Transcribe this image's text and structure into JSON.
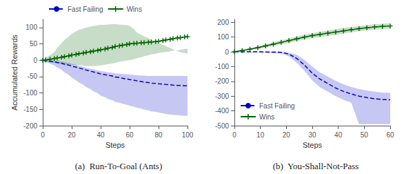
{
  "chart_data": [
    {
      "type": "line",
      "title": "(a)  Run-To-Goal (Ants)",
      "xlabel": "Steps",
      "ylabel": "Accumulated Rewards",
      "xlim": [
        0,
        100
      ],
      "ylim": [
        -200,
        125
      ],
      "xticks": [
        0,
        20,
        40,
        60,
        80,
        100
      ],
      "yticks": [
        -200,
        -150,
        -100,
        -50,
        0,
        50,
        100
      ],
      "grid": false,
      "legend": "upper left",
      "x": [
        0,
        2,
        5,
        8,
        10,
        13,
        15,
        18,
        20,
        23,
        25,
        28,
        30,
        33,
        35,
        38,
        40,
        43,
        45,
        48,
        50,
        53,
        55,
        58,
        60,
        63,
        65,
        68,
        70,
        73,
        75,
        78,
        80,
        83,
        85,
        88,
        90,
        93,
        95,
        98,
        100
      ],
      "series": [
        {
          "name": "Fast Failing",
          "color": "#0000CD",
          "line_style": "dashed",
          "values": [
            0,
            -1,
            -3,
            -5,
            -7,
            -9,
            -12,
            -15,
            -18,
            -21,
            -24,
            -27,
            -30,
            -33,
            -36,
            -39,
            -42,
            -44,
            -46,
            -48,
            -51,
            -53,
            -55,
            -57,
            -59,
            -61,
            -63,
            -65,
            -67,
            -68,
            -70,
            -71,
            -72,
            -73,
            -74,
            -75,
            -76,
            -77,
            -77,
            -78,
            -78
          ],
          "upper": [
            2,
            1,
            0,
            -1,
            -2,
            -4,
            -6,
            -8,
            -11,
            -14,
            -17,
            -20,
            -23,
            -26,
            -28,
            -31,
            -33,
            -35,
            -37,
            -38,
            -40,
            -41,
            -42,
            -43,
            -44,
            -45,
            -46,
            -47,
            -47,
            -48,
            -48,
            -48,
            -48,
            -48,
            -48,
            -48,
            -48,
            -48,
            -48,
            -48,
            -48
          ],
          "lower": [
            -2,
            -5,
            -10,
            -16,
            -22,
            -29,
            -37,
            -45,
            -53,
            -61,
            -68,
            -75,
            -82,
            -88,
            -95,
            -101,
            -108,
            -113,
            -118,
            -122,
            -127,
            -130,
            -133,
            -136,
            -139,
            -142,
            -145,
            -148,
            -151,
            -153,
            -156,
            -158,
            -160,
            -162,
            -164,
            -166,
            -167,
            -168,
            -169,
            -170,
            -170
          ]
        },
        {
          "name": "Wins",
          "color": "#006400",
          "line_style": "solid",
          "marker": "+",
          "values": [
            0,
            1,
            3,
            5,
            7,
            9,
            11,
            13,
            16,
            18,
            20,
            22,
            24,
            26,
            28,
            30,
            32,
            34,
            37,
            39,
            42,
            44,
            46,
            48,
            50,
            51,
            52,
            53,
            54,
            55,
            56,
            57,
            58,
            60,
            62,
            64,
            66,
            68,
            69,
            71,
            72
          ],
          "upper": [
            3,
            8,
            15,
            25,
            38,
            52,
            62,
            72,
            80,
            88,
            93,
            97,
            100,
            103,
            105,
            107,
            108,
            108,
            109,
            110,
            110,
            109,
            108,
            107,
            105,
            95,
            85,
            78,
            73,
            68,
            62,
            57,
            52,
            47,
            43,
            38,
            33,
            28,
            25,
            22,
            20
          ],
          "lower": [
            -3,
            -5,
            -7,
            -8,
            -10,
            -12,
            -14,
            -14,
            -14,
            -15,
            -15,
            -16,
            -18,
            -18,
            -18,
            -17,
            -16,
            -14,
            -12,
            -10,
            -8,
            -5,
            -3,
            -1,
            0,
            3,
            6,
            9,
            12,
            15,
            18,
            20,
            22,
            24,
            25,
            27,
            29,
            30,
            32,
            34,
            35
          ]
        }
      ]
    },
    {
      "type": "line",
      "title": "(b)  You-Shall-Not-Pass",
      "xlabel": "Steps",
      "xlim": [
        0,
        60
      ],
      "ylim": [
        -500,
        220
      ],
      "xticks": [
        0,
        10,
        20,
        30,
        40,
        50,
        60
      ],
      "yticks": [
        -500,
        -400,
        -300,
        -200,
        -100,
        0,
        100,
        200
      ],
      "grid": false,
      "legend": "lower left",
      "x": [
        0,
        3,
        6,
        9,
        12,
        15,
        18,
        21,
        24,
        27,
        30,
        33,
        36,
        39,
        42,
        45,
        48,
        51,
        54,
        57,
        60
      ],
      "series": [
        {
          "name": "Fast Failing",
          "color": "#0000CD",
          "line_style": "dashed",
          "values": [
            0,
            0,
            0,
            0,
            -1,
            -2,
            -3,
            -15,
            -45,
            -90,
            -145,
            -185,
            -215,
            -245,
            -268,
            -285,
            -300,
            -310,
            -318,
            -323,
            -325
          ],
          "upper": [
            3,
            3,
            3,
            3,
            2,
            1,
            0,
            -5,
            -20,
            -55,
            -100,
            -140,
            -168,
            -196,
            -220,
            -238,
            -252,
            -262,
            -270,
            -275,
            -278
          ],
          "lower": [
            -3,
            -3,
            -3,
            -3,
            -5,
            -8,
            -12,
            -30,
            -75,
            -130,
            -195,
            -240,
            -270,
            -300,
            -325,
            -345,
            -490,
            -490,
            -490,
            -490,
            -490
          ]
        },
        {
          "name": "Wins",
          "color": "#006400",
          "line_style": "solid",
          "marker": "+",
          "values": [
            0,
            9,
            18,
            28,
            40,
            52,
            64,
            76,
            88,
            100,
            110,
            118,
            126,
            134,
            142,
            150,
            157,
            163,
            168,
            172,
            175
          ],
          "upper": [
            5,
            14,
            25,
            36,
            50,
            63,
            77,
            90,
            103,
            116,
            127,
            136,
            144,
            153,
            161,
            168,
            175,
            181,
            186,
            190,
            193
          ],
          "lower": [
            -5,
            4,
            11,
            20,
            30,
            41,
            51,
            62,
            73,
            84,
            93,
            100,
            108,
            115,
            123,
            132,
            139,
            145,
            150,
            154,
            157
          ]
        }
      ]
    }
  ]
}
